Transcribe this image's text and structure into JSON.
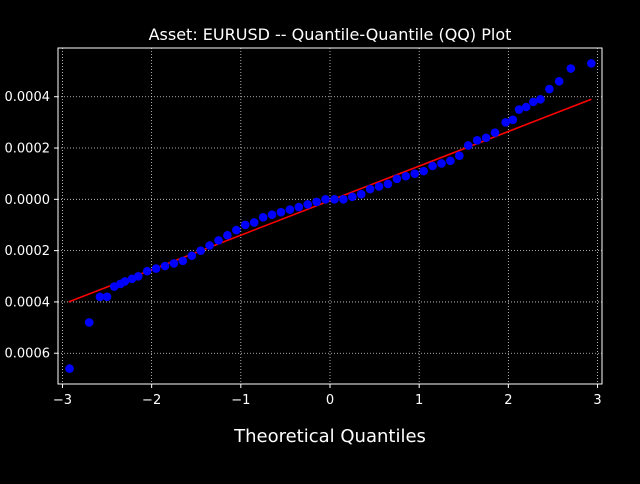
{
  "colors": {
    "background": "#000000",
    "axes": "#ffffff",
    "grid": "#ffffff",
    "points": "#0000ff",
    "line": "#ff0000",
    "text": "#ffffff"
  },
  "chart_data": {
    "type": "scatter",
    "title": "Asset: EURUSD -- Quantile-Quantile (QQ) Plot",
    "xlabel": "Theoretical Quantiles",
    "ylabel": "",
    "xlim": [
      -3.05,
      3.05
    ],
    "ylim": [
      -0.00072,
      0.00059
    ],
    "grid": true,
    "x_ticks": [
      -3,
      -2,
      -1,
      0,
      1,
      2,
      3
    ],
    "x_tick_labels": [
      "−3",
      "−2",
      "−1",
      "0",
      "1",
      "2",
      "3"
    ],
    "y_ticks": [
      -0.0006,
      -0.0004,
      -0.0002,
      0.0,
      0.0002,
      0.0004
    ],
    "y_tick_labels": [
      "0.0006",
      "0.0004",
      "0.0002",
      "0.0000",
      "0.0002",
      "0.0004"
    ],
    "series": [
      {
        "kind": "points",
        "points": [
          [
            -2.92,
            -0.00066
          ],
          [
            -2.7,
            -0.00048
          ],
          [
            -2.58,
            -0.00038
          ],
          [
            -2.5,
            -0.00038
          ],
          [
            -2.42,
            -0.00034
          ],
          [
            -2.35,
            -0.00033
          ],
          [
            -2.3,
            -0.00032
          ],
          [
            -2.22,
            -0.00031
          ],
          [
            -2.15,
            -0.0003
          ],
          [
            -2.05,
            -0.00028
          ],
          [
            -1.95,
            -0.00027
          ],
          [
            -1.85,
            -0.00026
          ],
          [
            -1.75,
            -0.00025
          ],
          [
            -1.65,
            -0.00024
          ],
          [
            -1.55,
            -0.00022
          ],
          [
            -1.45,
            -0.0002
          ],
          [
            -1.35,
            -0.00018
          ],
          [
            -1.25,
            -0.00016
          ],
          [
            -1.15,
            -0.00014
          ],
          [
            -1.05,
            -0.00012
          ],
          [
            -0.95,
            -0.0001
          ],
          [
            -0.85,
            -9e-05
          ],
          [
            -0.75,
            -7e-05
          ],
          [
            -0.65,
            -6e-05
          ],
          [
            -0.55,
            -5e-05
          ],
          [
            -0.45,
            -4e-05
          ],
          [
            -0.35,
            -3e-05
          ],
          [
            -0.25,
            -2e-05
          ],
          [
            -0.15,
            -1e-05
          ],
          [
            -0.05,
            0.0
          ],
          [
            0.05,
            0.0
          ],
          [
            0.15,
            0.0
          ],
          [
            0.25,
            1e-05
          ],
          [
            0.35,
            2e-05
          ],
          [
            0.45,
            4e-05
          ],
          [
            0.55,
            5e-05
          ],
          [
            0.65,
            6e-05
          ],
          [
            0.75,
            8e-05
          ],
          [
            0.85,
            9e-05
          ],
          [
            0.95,
            0.0001
          ],
          [
            1.05,
            0.00011
          ],
          [
            1.15,
            0.00013
          ],
          [
            1.25,
            0.00014
          ],
          [
            1.35,
            0.00015
          ],
          [
            1.45,
            0.00017
          ],
          [
            1.55,
            0.00021
          ],
          [
            1.65,
            0.00023
          ],
          [
            1.75,
            0.00024
          ],
          [
            1.85,
            0.00026
          ],
          [
            1.97,
            0.0003
          ],
          [
            2.05,
            0.00031
          ],
          [
            2.12,
            0.00035
          ],
          [
            2.2,
            0.00036
          ],
          [
            2.28,
            0.00038
          ],
          [
            2.36,
            0.00039
          ],
          [
            2.46,
            0.00043
          ],
          [
            2.57,
            0.00046
          ],
          [
            2.7,
            0.00051
          ],
          [
            2.93,
            0.00053
          ]
        ]
      },
      {
        "kind": "line",
        "points": [
          [
            -2.93,
            -0.0004
          ],
          [
            2.93,
            0.00039
          ]
        ]
      }
    ]
  }
}
